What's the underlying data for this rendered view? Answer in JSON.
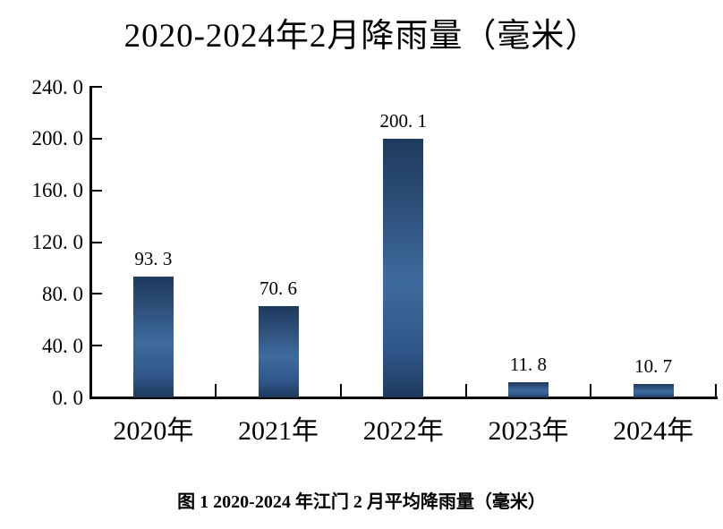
{
  "page": {
    "background": "#ffffff",
    "text_color": "#000000"
  },
  "title": "2020-2024年2月降雨量（毫米）",
  "caption": "图 1 2020-2024 年江门 2 月平均降雨量（毫米）",
  "chart_data": {
    "type": "bar",
    "title": "2020-2024年2月降雨量（毫米）",
    "xlabel": "",
    "ylabel": "",
    "categories": [
      "2020年",
      "2021年",
      "2022年",
      "2023年",
      "2024年"
    ],
    "values": [
      93.3,
      70.6,
      200.1,
      11.8,
      10.7
    ],
    "value_labels": [
      "93. 3",
      "70. 6",
      "200. 1",
      "11. 8",
      "10. 7"
    ],
    "y_axis": {
      "min": 0,
      "max": 240,
      "step": 40,
      "tick_labels_top_to_bottom": [
        "240. 0",
        "200. 0",
        "160. 0",
        "120. 0",
        "80. 0",
        "40. 0",
        "0. 0"
      ]
    },
    "grid": false,
    "legend": false,
    "axis_color": "#000000",
    "text_color": "#000000",
    "bar_colors": {
      "top": "#1e3a5d",
      "middle": "#3e6b9f",
      "bottom": "#1d3a5c",
      "gradient_stops": [
        [
          "0%",
          "#1e3a5d"
        ],
        [
          "28%",
          "#2f517c"
        ],
        [
          "55%",
          "#3e6b9f"
        ],
        [
          "82%",
          "#30568a"
        ],
        [
          "100%",
          "#1d3a5c"
        ]
      ]
    }
  }
}
